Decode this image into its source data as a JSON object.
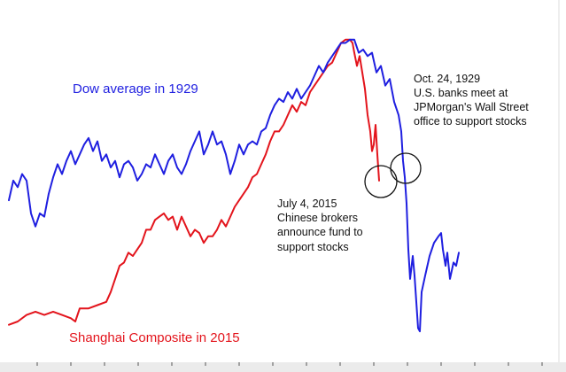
{
  "chart_data": {
    "type": "line",
    "title": "",
    "xlabel": "",
    "ylabel": "",
    "xlim": [
      0,
      124
    ],
    "ylim": [
      0,
      100
    ],
    "grid": false,
    "series": [
      {
        "name": "Dow average in 1929",
        "color": "#1f1fe0",
        "points": [
          [
            0,
            47
          ],
          [
            1,
            53
          ],
          [
            2,
            51
          ],
          [
            3,
            55
          ],
          [
            4,
            53
          ],
          [
            5,
            43
          ],
          [
            6,
            39
          ],
          [
            7,
            43
          ],
          [
            8,
            42
          ],
          [
            9,
            49
          ],
          [
            10,
            54
          ],
          [
            11,
            58
          ],
          [
            12,
            55
          ],
          [
            13,
            59
          ],
          [
            14,
            62
          ],
          [
            15,
            58
          ],
          [
            16,
            61
          ],
          [
            17,
            64
          ],
          [
            18,
            66
          ],
          [
            19,
            62
          ],
          [
            20,
            65
          ],
          [
            21,
            59
          ],
          [
            22,
            61
          ],
          [
            23,
            57
          ],
          [
            24,
            59
          ],
          [
            25,
            54
          ],
          [
            26,
            58
          ],
          [
            27,
            59
          ],
          [
            28,
            57
          ],
          [
            29,
            53
          ],
          [
            30,
            55
          ],
          [
            31,
            58
          ],
          [
            32,
            57
          ],
          [
            33,
            61
          ],
          [
            34,
            58
          ],
          [
            35,
            55
          ],
          [
            36,
            59
          ],
          [
            37,
            61
          ],
          [
            38,
            57
          ],
          [
            39,
            55
          ],
          [
            40,
            58
          ],
          [
            41,
            62
          ],
          [
            42,
            65
          ],
          [
            43,
            68
          ],
          [
            44,
            61
          ],
          [
            45,
            64
          ],
          [
            46,
            68
          ],
          [
            47,
            64
          ],
          [
            48,
            65
          ],
          [
            49,
            61
          ],
          [
            50,
            55
          ],
          [
            51,
            59
          ],
          [
            52,
            64
          ],
          [
            53,
            61
          ],
          [
            54,
            64
          ],
          [
            55,
            65
          ],
          [
            56,
            64
          ],
          [
            57,
            68
          ],
          [
            58,
            69
          ],
          [
            59,
            73
          ],
          [
            60,
            76
          ],
          [
            61,
            78
          ],
          [
            62,
            77
          ],
          [
            63,
            80
          ],
          [
            64,
            78
          ],
          [
            65,
            81
          ],
          [
            66,
            78
          ],
          [
            67,
            80
          ],
          [
            68,
            82
          ],
          [
            69,
            85
          ],
          [
            70,
            88
          ],
          [
            71,
            86
          ],
          [
            72,
            89
          ],
          [
            73,
            91
          ],
          [
            74,
            93
          ],
          [
            75,
            95
          ],
          [
            76,
            95
          ],
          [
            77,
            96
          ],
          [
            78,
            96
          ],
          [
            79,
            92
          ],
          [
            80,
            93
          ],
          [
            81,
            91
          ],
          [
            82,
            92
          ],
          [
            83,
            86
          ],
          [
            84,
            88
          ],
          [
            85,
            82
          ],
          [
            86,
            84
          ],
          [
            87,
            77
          ],
          [
            88,
            73
          ],
          [
            88.6,
            68
          ],
          [
            89,
            59
          ],
          [
            89.4,
            54
          ],
          [
            89.8,
            46
          ],
          [
            90.2,
            32
          ],
          [
            90.6,
            23
          ],
          [
            91.2,
            30
          ],
          [
            91.6,
            24
          ],
          [
            92,
            16
          ],
          [
            92.4,
            8
          ],
          [
            92.8,
            7
          ],
          [
            93.2,
            19
          ],
          [
            94,
            24
          ],
          [
            95,
            30
          ],
          [
            96,
            34
          ],
          [
            97,
            36
          ],
          [
            97.6,
            37
          ],
          [
            98,
            32
          ],
          [
            98.6,
            27
          ],
          [
            99,
            31
          ],
          [
            99.6,
            23
          ],
          [
            100.4,
            28
          ],
          [
            101,
            27
          ],
          [
            101.6,
            31
          ]
        ]
      },
      {
        "name": "Shanghai Composite in 2015",
        "color": "#e3141c",
        "points": [
          [
            0,
            9
          ],
          [
            2,
            10
          ],
          [
            4,
            12
          ],
          [
            6,
            13
          ],
          [
            8,
            12
          ],
          [
            10,
            13
          ],
          [
            12,
            12
          ],
          [
            14,
            11
          ],
          [
            15,
            10
          ],
          [
            16,
            14
          ],
          [
            18,
            14
          ],
          [
            20,
            15
          ],
          [
            22,
            16
          ],
          [
            23,
            19
          ],
          [
            24,
            23
          ],
          [
            25,
            27
          ],
          [
            26,
            28
          ],
          [
            27,
            31
          ],
          [
            28,
            30
          ],
          [
            29,
            32
          ],
          [
            30,
            34
          ],
          [
            31,
            38
          ],
          [
            32,
            38
          ],
          [
            33,
            41
          ],
          [
            34,
            42
          ],
          [
            35,
            43
          ],
          [
            36,
            41
          ],
          [
            37,
            42
          ],
          [
            38,
            38
          ],
          [
            39,
            42
          ],
          [
            40,
            39
          ],
          [
            41,
            36
          ],
          [
            42,
            38
          ],
          [
            43,
            37
          ],
          [
            44,
            34
          ],
          [
            45,
            36
          ],
          [
            46,
            36
          ],
          [
            47,
            38
          ],
          [
            48,
            41
          ],
          [
            49,
            39
          ],
          [
            50,
            42
          ],
          [
            51,
            45
          ],
          [
            52,
            47
          ],
          [
            53,
            49
          ],
          [
            54,
            51
          ],
          [
            55,
            54
          ],
          [
            56,
            55
          ],
          [
            57,
            58
          ],
          [
            58,
            61
          ],
          [
            59,
            65
          ],
          [
            60,
            68
          ],
          [
            61,
            68
          ],
          [
            62,
            70
          ],
          [
            63,
            73
          ],
          [
            64,
            76
          ],
          [
            65,
            74
          ],
          [
            66,
            77
          ],
          [
            67,
            76
          ],
          [
            68,
            80
          ],
          [
            69,
            82
          ],
          [
            70,
            84
          ],
          [
            71,
            86
          ],
          [
            72,
            88
          ],
          [
            73,
            89
          ],
          [
            74,
            92
          ],
          [
            75,
            95
          ],
          [
            76,
            96
          ],
          [
            77,
            96
          ],
          [
            77.6,
            95
          ],
          [
            78,
            92
          ],
          [
            78.6,
            88
          ],
          [
            79.2,
            91
          ],
          [
            79.8,
            86
          ],
          [
            80.4,
            81
          ],
          [
            81,
            73
          ],
          [
            81.6,
            68
          ],
          [
            82,
            62
          ],
          [
            82.4,
            64
          ],
          [
            82.8,
            70
          ],
          [
            83.2,
            61
          ],
          [
            83.6,
            53
          ]
        ]
      }
    ],
    "annotations": [
      {
        "lines": [
          "July 4, 2015",
          "Chinese brokers",
          "announce fund to",
          "support stocks"
        ]
      },
      {
        "lines": [
          "Oct. 24, 1929",
          "U.S. banks meet at",
          "JPMorgan's Wall Street",
          "office to support stocks"
        ]
      }
    ]
  }
}
